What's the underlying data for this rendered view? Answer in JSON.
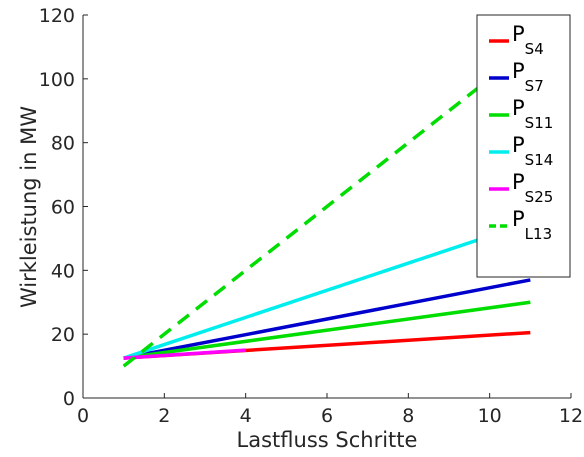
{
  "chart_data": {
    "type": "line",
    "title": "",
    "xlabel": "Lastfluss Schritte",
    "ylabel": "Wirkleistung in MW",
    "xlim": [
      0,
      12
    ],
    "ylim": [
      0,
      120
    ],
    "xticks": [
      0,
      2,
      4,
      6,
      8,
      10,
      12
    ],
    "yticks": [
      0,
      20,
      40,
      60,
      80,
      100,
      120
    ],
    "grid": false,
    "legend_position": "top-right",
    "series": [
      {
        "name": "P",
        "sub": "S4",
        "color": "#ff0000",
        "dash": "solid",
        "x": [
          1,
          11
        ],
        "y": [
          12.5,
          20.5
        ]
      },
      {
        "name": "P",
        "sub": "S7",
        "color": "#0000cc",
        "dash": "solid",
        "x": [
          1,
          11
        ],
        "y": [
          12.5,
          37
        ]
      },
      {
        "name": "P",
        "sub": "S11",
        "color": "#00dd00",
        "dash": "solid",
        "x": [
          1,
          11
        ],
        "y": [
          12.5,
          30
        ]
      },
      {
        "name": "P",
        "sub": "S14",
        "color": "#00eeee",
        "dash": "solid",
        "x": [
          1,
          11
        ],
        "y": [
          12.5,
          55
        ]
      },
      {
        "name": "P",
        "sub": "S25",
        "color": "#ff00ff",
        "dash": "solid",
        "x": [
          1,
          4
        ],
        "y": [
          12.5,
          15
        ]
      },
      {
        "name": "P",
        "sub": "L13",
        "color": "#00dd00",
        "dash": "dashed",
        "x": [
          1,
          10
        ],
        "y": [
          10,
          100
        ]
      }
    ]
  }
}
